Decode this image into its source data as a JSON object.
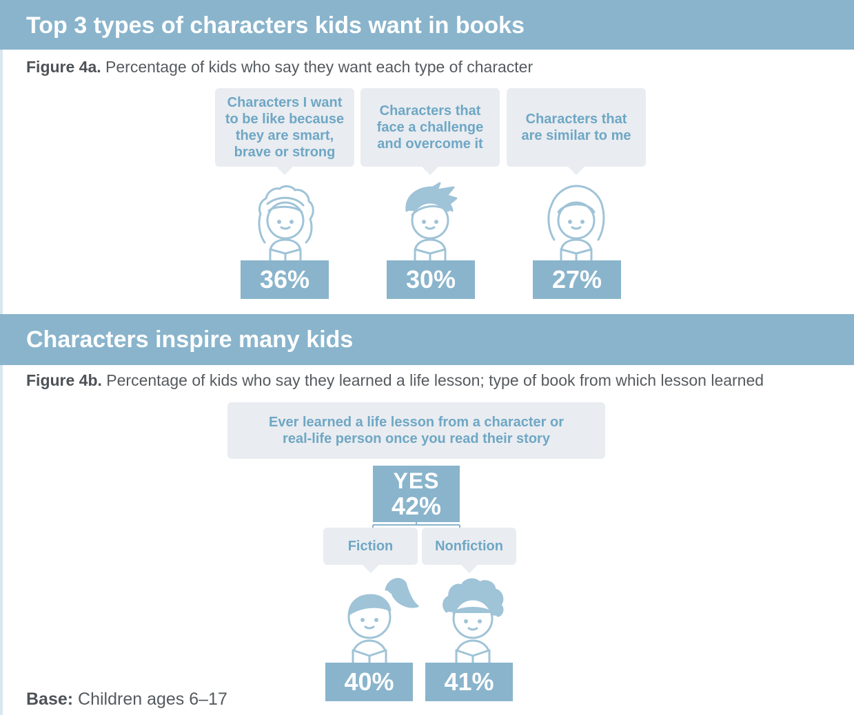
{
  "section_a": {
    "title": "Top 3 types of characters kids want in books",
    "caption_label": "Figure 4a.",
    "caption_text": "Percentage of kids who say they want each type of character"
  },
  "section_b": {
    "title": "Characters inspire many kids",
    "caption_label": "Figure 4b.",
    "caption_text": "Percentage of kids who say they learned a life lesson; type of book from which lesson learned",
    "question": "Ever learned a life lesson from a character or real-life person once you read their story",
    "yes_label": "YES",
    "yes_value": "42%"
  },
  "base": {
    "label": "Base:",
    "text": "Children ages 6–17"
  },
  "colors": {
    "accent": "#89b4cc",
    "bubble": "#e9ecf0",
    "bubble_text": "#6ea7c5",
    "kid_stroke": "#9fc3d7"
  },
  "chart_data": [
    {
      "type": "bar",
      "title": "Top 3 types of characters kids want in books",
      "categories": [
        "Characters I want to be like because they are smart, brave or strong",
        "Characters that face a challenge and overcome it",
        "Characters that are similar to me"
      ],
      "values": [
        36,
        30,
        27
      ],
      "labels": [
        "36%",
        "30%",
        "27%"
      ],
      "icons": [
        "girl-curly-hair-icon",
        "boy-spiky-hair-icon",
        "girl-bob-hair-icon"
      ]
    },
    {
      "type": "bar",
      "title": "Characters inspire many kids",
      "categories": [
        "Fiction",
        "Nonfiction"
      ],
      "values": [
        40,
        41
      ],
      "labels": [
        "40%",
        "41%"
      ],
      "icons": [
        "girl-ponytail-icon",
        "boy-curly-hair-icon"
      ]
    }
  ]
}
